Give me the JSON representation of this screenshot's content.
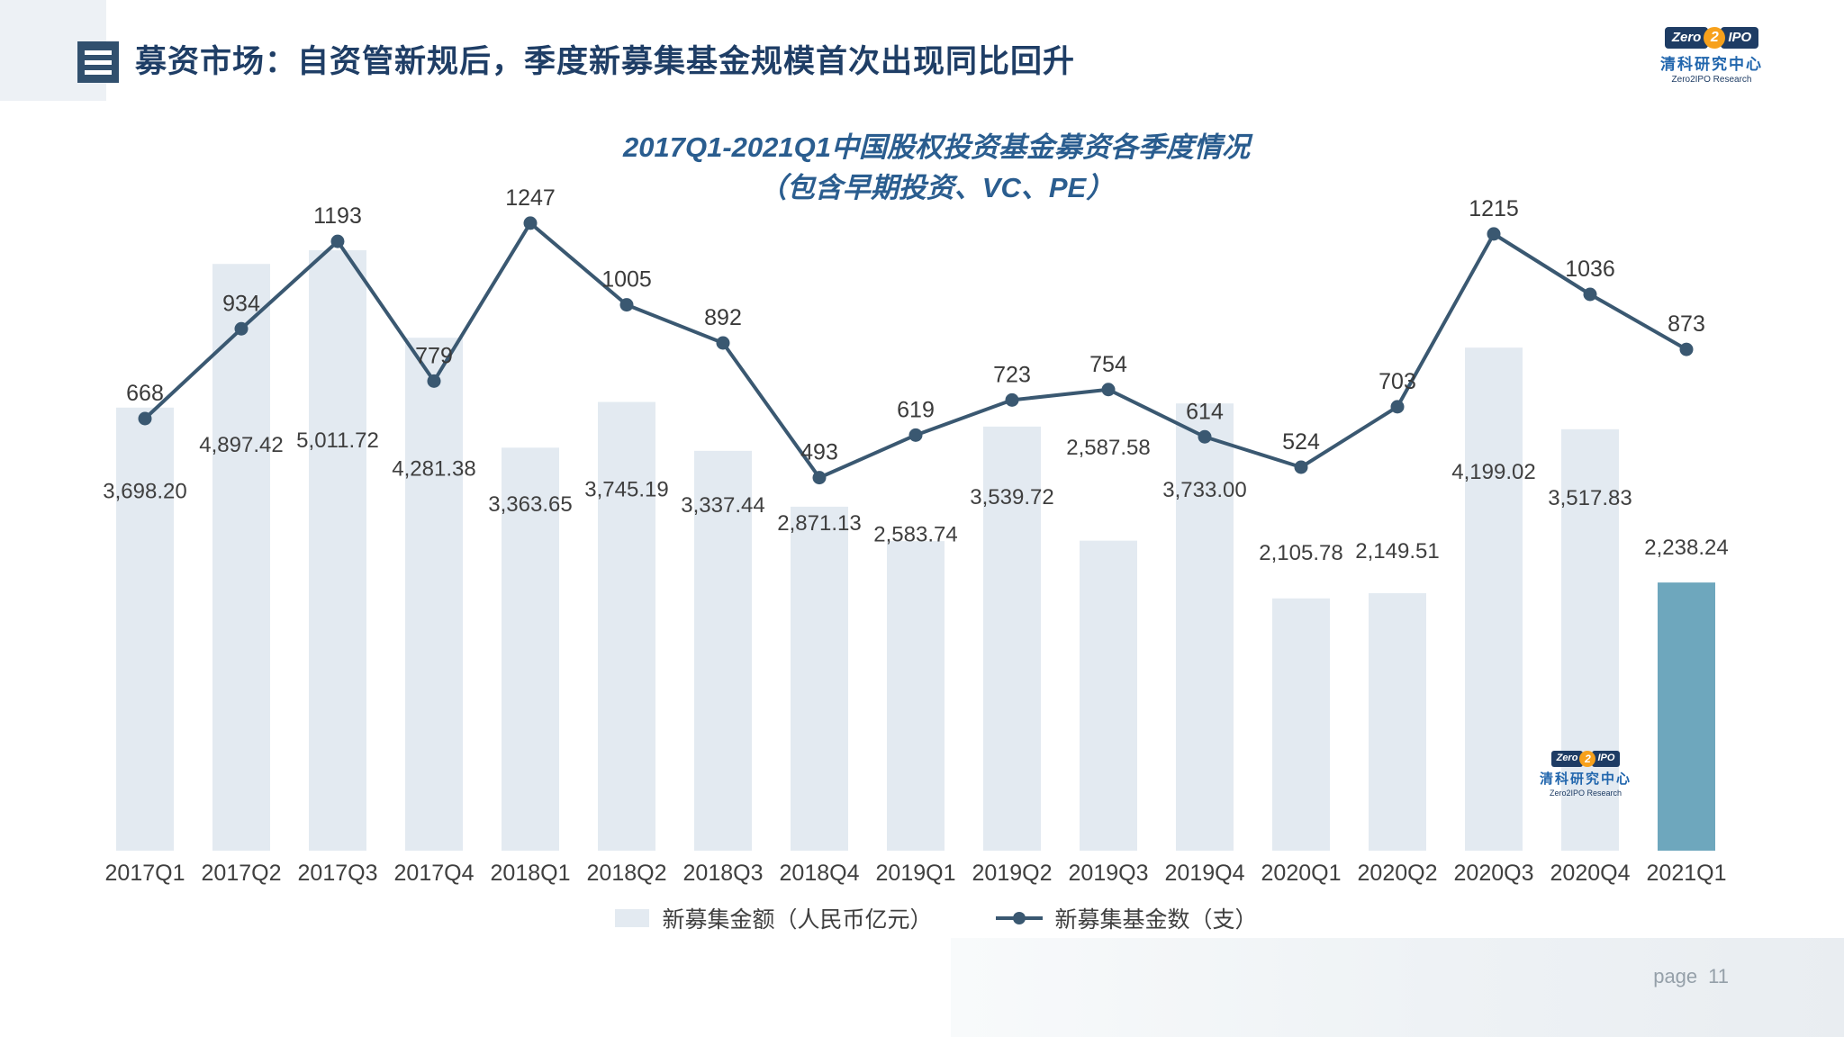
{
  "header": {
    "title": "募资市场：自资管新规后，季度新募集基金规模首次出现同比回升"
  },
  "brand": {
    "zero": "Zero",
    "two": "2",
    "ipo": "IPO",
    "name_cn": "清科研究中心",
    "name_en": "Zero2IPO Research"
  },
  "chart_data": {
    "type": "combo-bar-line",
    "title": "2017Q1-2021Q1中国股权投资基金募资各季度情况",
    "subtitle": "（包含早期投资、VC、PE）",
    "categories": [
      "2017Q1",
      "2017Q2",
      "2017Q3",
      "2017Q4",
      "2018Q1",
      "2018Q2",
      "2018Q3",
      "2018Q4",
      "2019Q1",
      "2019Q2",
      "2019Q3",
      "2019Q4",
      "2020Q1",
      "2020Q2",
      "2020Q3",
      "2020Q4",
      "2021Q1"
    ],
    "series": [
      {
        "name": "新募集金额（人民币亿元）",
        "type": "bar",
        "values": [
          3698.2,
          4897.42,
          5011.72,
          4281.38,
          3363.65,
          3745.19,
          3337.44,
          2871.13,
          2583.74,
          3539.72,
          2587.58,
          3733.0,
          2105.78,
          2149.51,
          4199.02,
          3517.83,
          2238.24
        ]
      },
      {
        "name": "新募集基金数（支）",
        "type": "line",
        "values": [
          668,
          934,
          1193,
          779,
          1247,
          1005,
          892,
          493,
          619,
          723,
          754,
          614,
          524,
          703,
          1215,
          1036,
          873
        ]
      }
    ],
    "highlight_category": "2021Q1",
    "highlight_index": 16,
    "colors": {
      "bar": "#e3eaf1",
      "bar_highlight": "#6ea7bd",
      "line": "#3a5871",
      "label": "#3f3f3f"
    },
    "legend_position": "bottom",
    "grid": false,
    "axes_visible": false
  },
  "footer": {
    "page_label": "page",
    "page_number": "11"
  }
}
